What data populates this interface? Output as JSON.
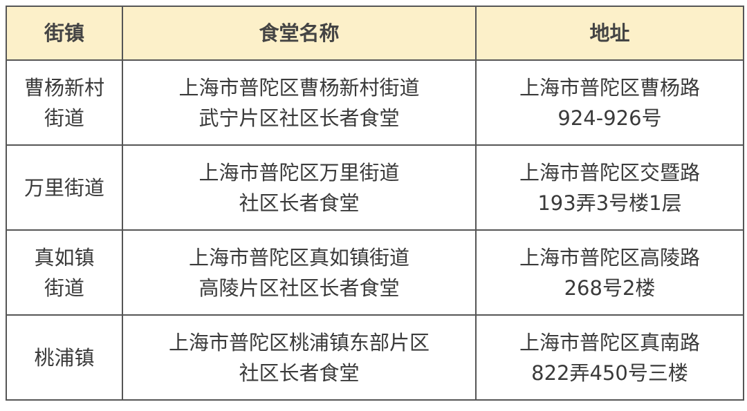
{
  "table": {
    "headers": [
      "街镇",
      "食堂名称",
      "地址"
    ],
    "header_bg": "#fcf0c9",
    "rows": [
      {
        "street": [
          "曹杨新村",
          "街道"
        ],
        "name": [
          "上海市普陀区曹杨新村街道",
          "武宁片区社区长者食堂"
        ],
        "address": [
          "上海市普陀区曹杨路",
          "924-926号"
        ]
      },
      {
        "street": [
          "万里街道"
        ],
        "name": [
          "上海市普陀区万里街道",
          "社区长者食堂"
        ],
        "address": [
          "上海市普陀区交暨路",
          "193弄3号楼1层"
        ]
      },
      {
        "street": [
          "真如镇",
          "街道"
        ],
        "name": [
          "上海市普陀区真如镇街道",
          "高陵片区社区长者食堂"
        ],
        "address": [
          "上海市普陀区高陵路",
          "268号2楼"
        ]
      },
      {
        "street": [
          "桃浦镇"
        ],
        "name": [
          "上海市普陀区桃浦镇东部片区",
          "社区长者食堂"
        ],
        "address": [
          "上海市普陀区真南路",
          "822弄450号三楼"
        ]
      }
    ]
  }
}
